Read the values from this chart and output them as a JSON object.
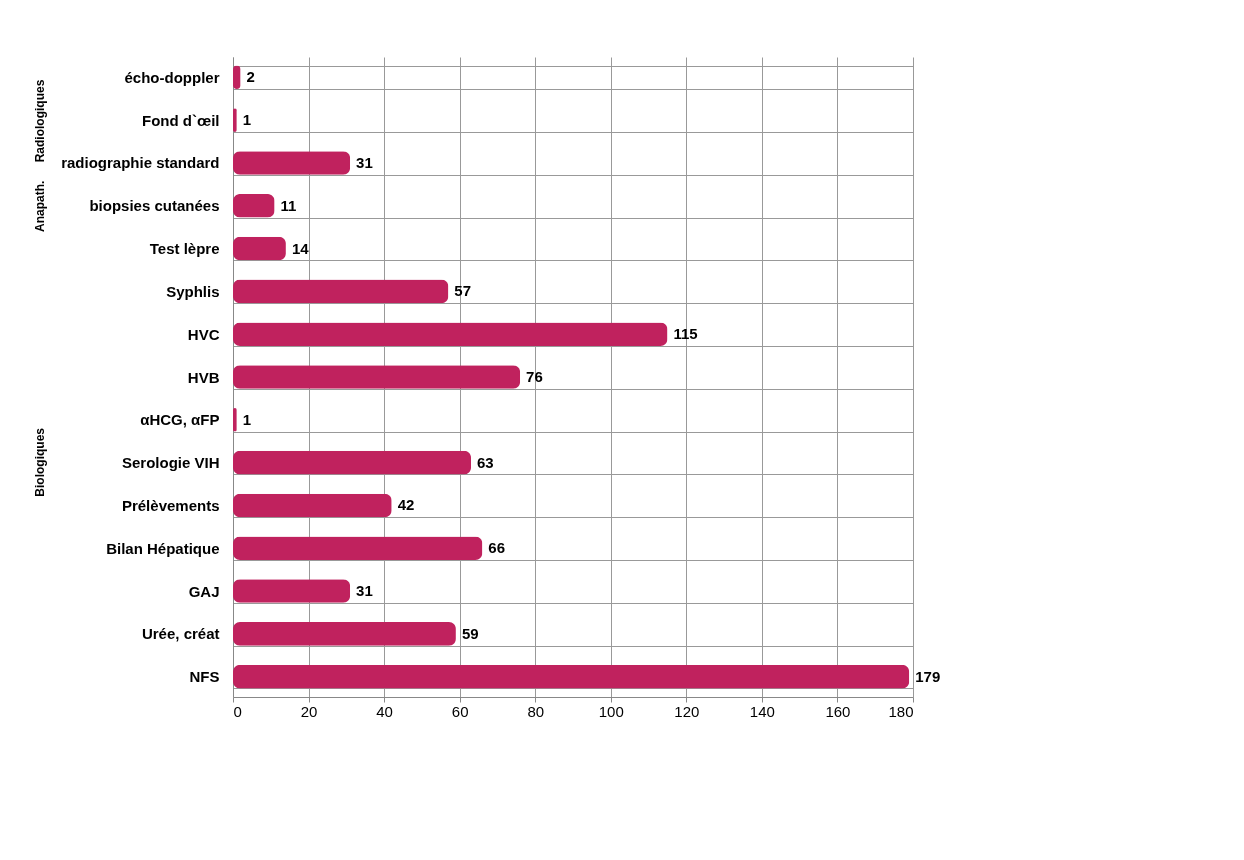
{
  "chart_data": {
    "type": "bar",
    "orientation": "horizontal",
    "categories": [
      "écho-doppler",
      "Fond d`œil",
      "radiographie standard",
      "biopsies cutanées",
      "Test lèpre",
      "Syphlis",
      "HVC",
      "HVB",
      "αHCG, αFP",
      "Serologie VIH",
      "Prélèvements",
      "Bilan Hépatique",
      "GAJ",
      "Urée, créat",
      "NFS"
    ],
    "values": [
      2,
      1,
      31,
      11,
      14,
      57,
      115,
      76,
      1,
      63,
      42,
      66,
      31,
      59,
      179
    ],
    "color": "#c0225e",
    "xlim": [
      0,
      180
    ],
    "xticks": [
      0,
      20,
      40,
      60,
      80,
      100,
      120,
      140,
      160,
      180
    ],
    "grid": "x",
    "data_labels": true,
    "annotations": [
      "Radiologiques",
      "Anapath.",
      "Biologiques"
    ]
  }
}
